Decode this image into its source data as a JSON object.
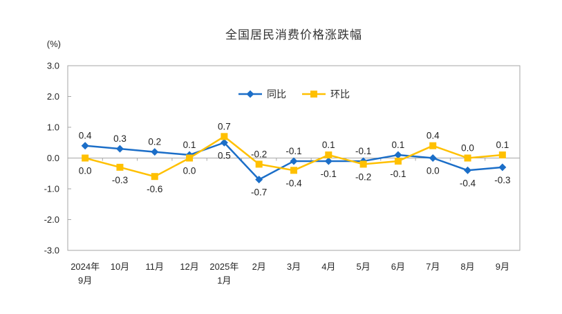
{
  "chart_data": {
    "type": "line",
    "title": "全国居民消费价格涨跌幅",
    "ylabel": "(%)",
    "categories": [
      "2024年\n9月",
      "10月",
      "11月",
      "12月",
      "2025年\n1月",
      "2月",
      "3月",
      "4月",
      "5月",
      "6月",
      "7月",
      "8月",
      "9月"
    ],
    "series": [
      {
        "name": "同比",
        "marker": "diamond",
        "color": "#1b6ec8",
        "values": [
          0.4,
          0.3,
          0.2,
          0.1,
          0.5,
          -0.7,
          -0.1,
          -0.1,
          -0.1,
          0.1,
          0.0,
          -0.4,
          -0.3
        ]
      },
      {
        "name": "环比",
        "marker": "square",
        "color": "#ffc000",
        "values": [
          0.0,
          -0.3,
          -0.6,
          0.0,
          0.7,
          -0.2,
          -0.4,
          0.1,
          -0.2,
          -0.1,
          0.4,
          0.0,
          0.1
        ]
      }
    ],
    "ylim": [
      -3.0,
      3.0
    ],
    "ytick_step": 1.0,
    "yticks": [
      "3.0",
      "2.0",
      "1.0",
      "0.0",
      "-1.0",
      "-2.0",
      "-3.0"
    ],
    "grid": false,
    "data_labels": true,
    "legend_position": "top-center",
    "axis_color": "#a6a6a6",
    "text_color": "#262626"
  }
}
